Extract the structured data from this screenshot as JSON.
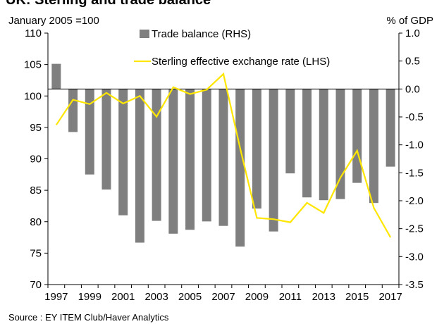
{
  "chart_data": {
    "type": "bar_line",
    "title": "UK: Sterling and trade balance",
    "ylabel": "January 2005 =100",
    "y2label": "% of GDP",
    "source": "Source : EY ITEM Club/Haver Analytics",
    "categories": [
      "1997",
      null,
      "1999",
      null,
      "2001",
      null,
      "2003",
      null,
      "2005",
      null,
      "2007",
      null,
      "2009",
      null,
      "2011",
      null,
      "2013",
      null,
      "2015",
      null,
      "2017"
    ],
    "series": [
      {
        "name": "Trade balance (RHS)",
        "type": "bar",
        "axis": "y2",
        "color": "#7f7f7f",
        "values": [
          0.45,
          -0.77,
          -1.53,
          -1.8,
          -2.26,
          -2.75,
          -2.36,
          -2.59,
          -2.52,
          -2.37,
          -2.45,
          -2.82,
          -2.14,
          -2.55,
          -1.51,
          -1.94,
          -1.99,
          -1.97,
          -1.68,
          -2.04,
          -1.39
        ]
      },
      {
        "name": "Sterling effective exchange rate (LHS)",
        "type": "line",
        "axis": "y",
        "color": "#ffe600",
        "values": [
          95.4,
          99.4,
          98.7,
          100.5,
          98.8,
          100.0,
          96.7,
          101.4,
          100.3,
          101.0,
          103.5,
          91.7,
          80.6,
          80.4,
          79.9,
          83.0,
          81.4,
          87.0,
          91.3,
          82.2,
          77.5
        ]
      }
    ],
    "ylim": [
      70,
      110
    ],
    "yticks": [
      70,
      75,
      80,
      85,
      90,
      95,
      100,
      105,
      110
    ],
    "y2lim": [
      -3.5,
      1.0
    ],
    "y2ticks": [
      -3.5,
      {
        "value": -3.0,
        "label": "-3.0"
      },
      -2.5,
      {
        "value": -2.0,
        "label": "-2.0"
      },
      -1.5,
      {
        "value": -1.0,
        "label": "-1.0"
      },
      -0.5,
      {
        "value": 0.0,
        "label": "0.0"
      },
      0.5,
      {
        "value": 1.0,
        "label": "1.0"
      }
    ],
    "legend": "top"
  }
}
